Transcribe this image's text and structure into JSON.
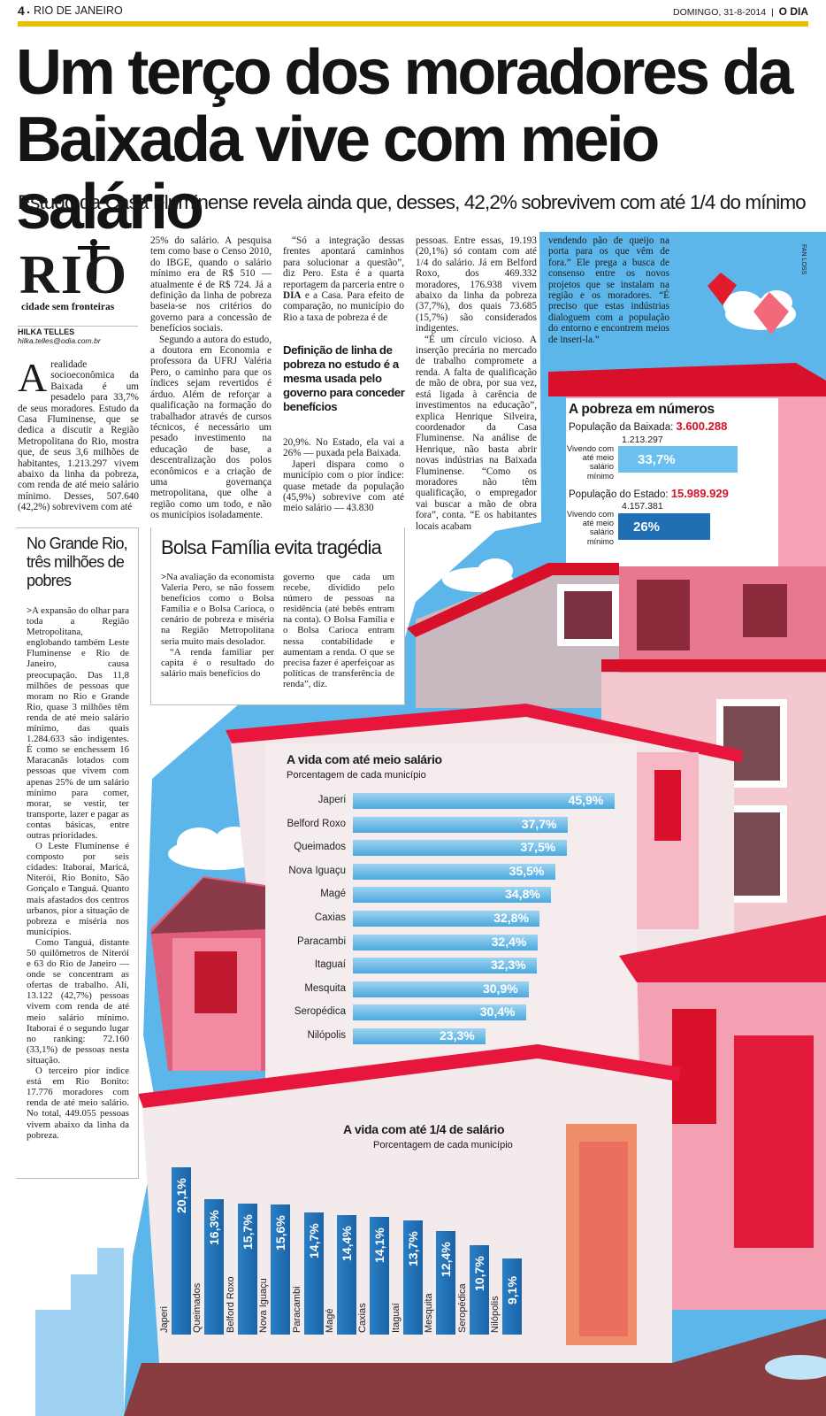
{
  "header": {
    "page_number": "4",
    "section": "RIO DE JANEIRO",
    "date": "DOMINGO, 31-8-2014",
    "brand": "O DIA"
  },
  "headline": {
    "line1": "Um terço dos moradores da",
    "line2": "Baixada vive com meio salário"
  },
  "subheadline": "Estudo da Casa Fluminense revela ainda que, desses, 42,2% sobrevivem com até 1/4 do mínimo",
  "logo": {
    "title": "RIO",
    "tagline": "cidade sem fronteiras"
  },
  "byline": {
    "author": "HILKA TELLES",
    "email": "hilka.telles@odia.com.br"
  },
  "illustration_credit": "FAN LOSS",
  "article": {
    "dropcap": "A",
    "col1": "realidade socioeconômica da Baixada é um pesadelo para 33,7% de seus moradores. Estudo da Casa Fluminense, que se dedica a discutir a Região Metropolitana do Rio, mostra que, de seus 3,6 milhões de habitantes, 1.213.297 vivem abaixo da linha da pobreza, com renda de até meio salário mínimo. Desses, 507.640 (42,2%) sobrevivem com até",
    "col2_p1": "25% do salário. A pesquisa tem como base o Censo 2010, do IBGE, quando o salário mínimo era de R$ 510 — atualmente é de R$ 724. Já a definição da linha de pobreza baseia-se nos critérios do governo para a concessão de benefícios sociais.",
    "col2_p2": "Segundo a autora do estudo, a doutora em Economia e professora da UFRJ Valéria Pero, o caminho para que os índices sejam revertidos é árduo. Além de reforçar a qualificação na formação do trabalhador através de cursos técnicos, é necessário um pesado investimento na educação de base, a descentralização dos polos econômicos e a criação de uma governança metropolitana, que olhe a região como um todo, e não os municípios isoladamente.",
    "col3_p1_pre": "“Só a integração dessas frentes apontará caminhos para solucionar a questão”, diz Pero. Esta é a quarta reportagem da parceria entre o ",
    "col3_p1_bold": "DIA",
    "col3_p1_post": " e a Casa. Para efeito de comparação, no município do Rio a taxa de pobreza é de",
    "pullquote": "Definição de linha de pobreza no estudo é a mesma usada pelo governo para conceder benefícios",
    "col3_p2": "20,9%. No Estado, ela vai a 26% — puxada pela Baixada.",
    "col3_p3": "Japeri dispara como o município com o pior índice: quase metade da população (45,9%) sobrevive com até meio salário — 43.830",
    "col4_p1": "pessoas. Entre essas, 19.193 (20,1%) só contam com até 1/4 do salário. Já em Belford Roxo, dos 469.332 moradores, 176.938 vivem abaixo da linha da pobreza (37,7%), dos quais 73.685 (15,7%) são considerados indigentes.",
    "col4_p2": "“É um círculo vicioso. A inserção precária no mercado de trabalho compromete a renda. A falta de qualificação de mão de obra, por sua vez, está ligada à carência de investimentos na educação”, explica Henrique Silveira, coordenador da Casa Fluminense. Na análise de Henrique, não basta abrir novas indústrias na Baixada Fluminense. “Como os moradores não têm qualificação, o empregador vai buscar a mão de obra fora”, conta. “E os habitantes locais acabam",
    "col5": "vendendo pão de queijo na porta para os que vêm de fora.” Ele prega a busca de consenso entre os novos projetos que se instalam na região e os moradores. “É preciso que estas indústrias dialoguem com a população do entorno e encontrem meios de inseri-la.”"
  },
  "sidebar": {
    "title": "No Grande Rio, três milhões de pobres",
    "p1": "A expansão do olhar para toda a Região Metropolitana, englobando também Leste Fluminense e Rio de Janeiro, causa preocupação. Das 11,8 milhões de pessoas que moram no Rio e Grande Rio, quase 3 milhões têm renda de até meio salário mínimo, das quais 1.284.633 são indigentes. É como se enchessem 16 Maracanãs lotados com pessoas que vivem com apenas 25% de um salário mínimo para comer, morar, se vestir, ter transporte, lazer e pagar as contas básicas, entre outras prioridades.",
    "p2": "O Leste Fluminense é composto por seis cidades: Itaboraí, Maricá, Niterói, Rio Bonito, São Gonçalo e Tanguá. Quanto mais afastados dos centros urbanos, pior a situação de pobreza e miséria nos municípios.",
    "p3": "Como Tanguá, distante 50 quilômetros de Niterói e 63 do Rio de Janeiro — onde se concentram as ofertas de trabalho. Ali, 13.122 (42,7%) pessoas vivem com renda de até meio salário mínimo. Itaboraí é o segundo lugar no ranking: 72.160 (33,1%) de pessoas nesta situação.",
    "p4": "O terceiro pior índice está em Rio Bonito: 17.776 moradores com renda de até meio salário. No total, 449.055 pessoas vivem abaixo da linha da pobreza."
  },
  "bolsa": {
    "title": "Bolsa Família evita tragédia",
    "colA": "Na avaliação da economista Valeria Pero, se não fossem benefícios como o Bolsa Família e o Bolsa Carioca, o cenário de pobreza e miséria na Região Metropolitana seria muito mais desolador.",
    "colA2": "“A renda familiar per capita é o resultado do salário mais benefícios do",
    "colB": "governo que cada um recebe, dividido pelo número de pessoas na residência (até bebês entram na conta). O Bolsa Família e o Bolsa Carioca entram nessa contabilidade e aumentam a renda. O que se precisa fazer é aperfeiçoar as políticas de transferência de renda”, diz."
  },
  "numbers": {
    "title": "A pobreza em números",
    "baixada_label": "População da Baixada: ",
    "baixada_value": "3.600.288",
    "vivendo_label": "Vivendo com até meio salário mínimo",
    "baixada_poor": "1.213.297",
    "baixada_pct": "33,7%",
    "baixada_frac": 0.337,
    "estado_label": "População do Estado: ",
    "estado_value": "15.989.929",
    "estado_poor": "4.157.381",
    "estado_pct": "26%",
    "estado_frac": 0.26,
    "accent": "#d8102a"
  },
  "chart_data": [
    {
      "type": "bar",
      "orientation": "horizontal",
      "title": "A vida com até meio salário",
      "subtitle": "Porcentagem de cada município",
      "categories": [
        "Japeri",
        "Belford Roxo",
        "Queimados",
        "Nova Iguaçu",
        "Magé",
        "Caxias",
        "Paracambi",
        "Itaguaí",
        "Mesquita",
        "Seropédica",
        "Nilópolis"
      ],
      "values": [
        45.9,
        37.7,
        37.5,
        35.5,
        34.8,
        32.8,
        32.4,
        32.3,
        30.9,
        30.4,
        23.3
      ],
      "labels": [
        "45,9%",
        "37,7%",
        "37,5%",
        "35,5%",
        "34,8%",
        "32,8%",
        "32,4%",
        "32,3%",
        "30,9%",
        "30,4%",
        "23,3%"
      ],
      "color": "#5ab4e6"
    },
    {
      "type": "bar",
      "orientation": "vertical",
      "title": "A vida com até 1/4 de salário",
      "subtitle": "Porcentagem de cada município",
      "categories": [
        "Japeri",
        "Queimados",
        "Belford Roxo",
        "Nova Iguaçu",
        "Paracambi",
        "Magé",
        "Caxias",
        "Itaguaí",
        "Mesquita",
        "Seropédica",
        "Nilópolis"
      ],
      "values": [
        20.1,
        16.3,
        15.7,
        15.6,
        14.7,
        14.4,
        14.1,
        13.7,
        12.4,
        10.7,
        9.1
      ],
      "labels": [
        "20,1%",
        "16,3%",
        "15,7%",
        "15,6%",
        "14,7%",
        "14,4%",
        "14,1%",
        "13,7%",
        "12,4%",
        "10,7%",
        "9,1%"
      ],
      "color": "#1f6fb5"
    }
  ]
}
